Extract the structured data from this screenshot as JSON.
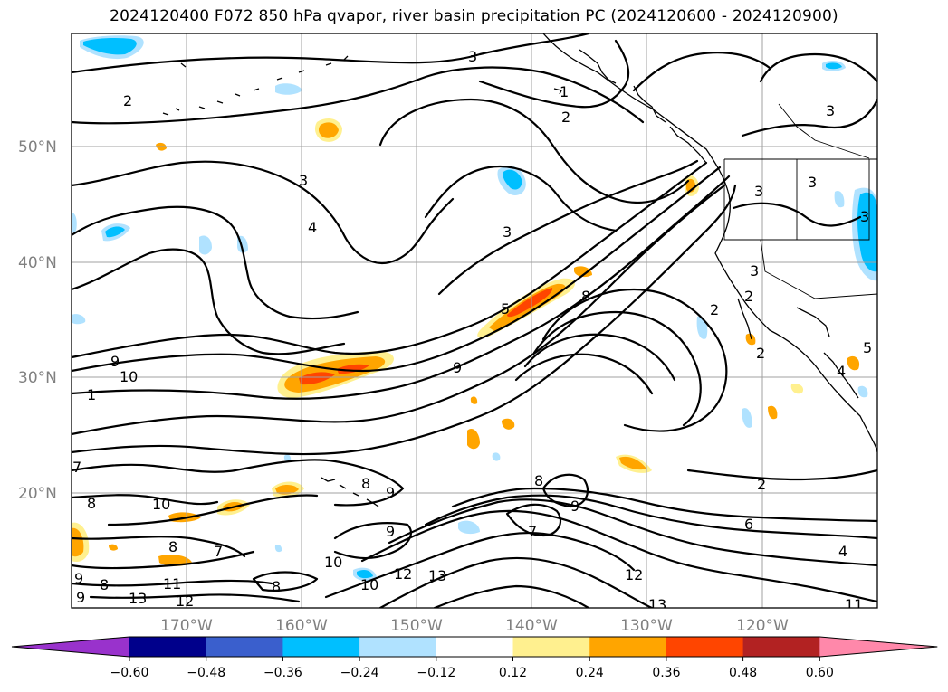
{
  "title": "2024120400 F072 850 hPa qvapor, river basin precipitation PC (2024120600 - 2024120900)",
  "map": {
    "lat_labels": [
      "50°N",
      "40°N",
      "30°N",
      "20°N"
    ],
    "lon_labels": [
      "170°W",
      "160°W",
      "150°W",
      "140°W",
      "130°W",
      "120°W"
    ],
    "contour_labels": [
      "3",
      "2",
      "1",
      "2",
      "3",
      "3",
      "4",
      "3",
      "3",
      "3",
      "2",
      "3",
      "2",
      "2",
      "5",
      "8",
      "9",
      "9",
      "10",
      "1",
      "7",
      "8",
      "10",
      "8",
      "9",
      "9",
      "8",
      "9",
      "7",
      "10",
      "8",
      "7",
      "9",
      "8",
      "8",
      "9",
      "13",
      "11",
      "12",
      "10",
      "12",
      "13",
      "12",
      "13",
      "11",
      "2",
      "6",
      "4",
      "4",
      "5",
      "3"
    ]
  },
  "colorbar": {
    "colors": [
      "#9932cc",
      "#00008b",
      "#3a5fcd",
      "#00bfff",
      "#b0e2ff",
      "#ffffff",
      "#fff08f",
      "#ffa500",
      "#ff4500",
      "#b22222",
      "#ff88aa"
    ],
    "labels": [
      "−0.60",
      "−0.48",
      "−0.36",
      "−0.24",
      "−0.12",
      "0.12",
      "0.24",
      "0.36",
      "0.48",
      "0.60"
    ]
  }
}
